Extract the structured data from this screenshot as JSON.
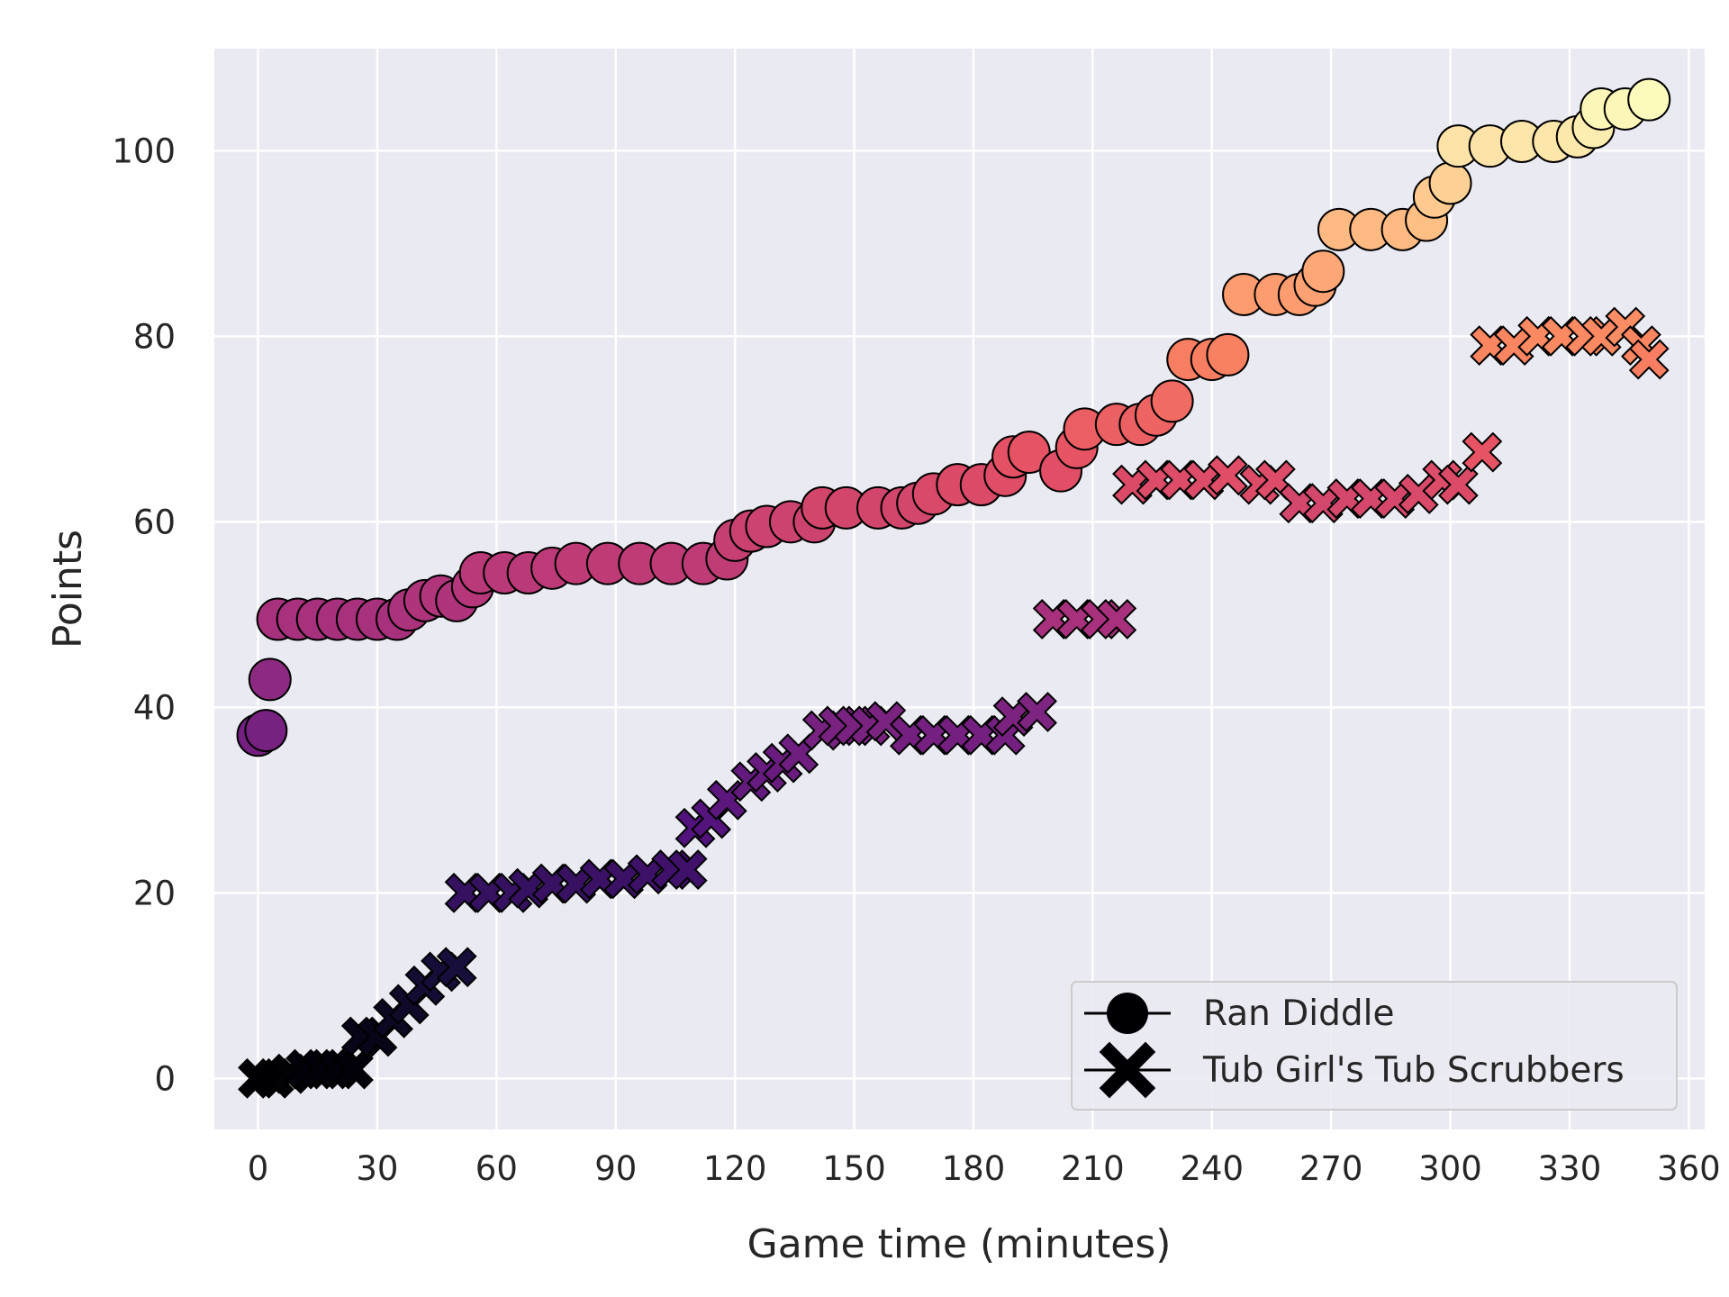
{
  "chart_data": {
    "type": "scatter",
    "xlabel": "Game time (minutes)",
    "ylabel": "Points",
    "xlim": [
      -11,
      364
    ],
    "ylim": [
      -5.5,
      111
    ],
    "xticks": [
      0,
      30,
      60,
      90,
      120,
      150,
      180,
      210,
      240,
      270,
      300,
      330,
      360
    ],
    "yticks": [
      0,
      20,
      40,
      60,
      80,
      100
    ],
    "grid": true,
    "background": "#eaeaf2",
    "grid_color": "#ffffff",
    "colormap": "magma",
    "color_range": [
      0,
      106
    ],
    "legend_position": "lower right",
    "series": [
      {
        "name": "Ran Diddle",
        "marker": "circle",
        "points": [
          [
            0,
            37
          ],
          [
            2,
            37.5
          ],
          [
            3,
            43
          ],
          [
            5,
            49.5
          ],
          [
            10,
            49.5
          ],
          [
            15,
            49.5
          ],
          [
            20,
            49.5
          ],
          [
            25,
            49.5
          ],
          [
            30,
            49.5
          ],
          [
            35,
            49.5
          ],
          [
            38,
            50.5
          ],
          [
            42,
            51.5
          ],
          [
            46,
            52
          ],
          [
            50,
            51.5
          ],
          [
            54,
            53
          ],
          [
            56,
            54.5
          ],
          [
            62,
            54.5
          ],
          [
            68,
            54.5
          ],
          [
            74,
            55
          ],
          [
            80,
            55.5
          ],
          [
            88,
            55.5
          ],
          [
            96,
            55.5
          ],
          [
            104,
            55.5
          ],
          [
            112,
            55.5
          ],
          [
            118,
            56
          ],
          [
            120,
            58
          ],
          [
            124,
            59
          ],
          [
            128,
            59.5
          ],
          [
            134,
            60
          ],
          [
            140,
            60
          ],
          [
            142,
            61.5
          ],
          [
            148,
            61.5
          ],
          [
            156,
            61.5
          ],
          [
            162,
            61.5
          ],
          [
            166,
            62
          ],
          [
            170,
            63
          ],
          [
            176,
            64
          ],
          [
            182,
            64
          ],
          [
            188,
            65
          ],
          [
            190,
            67
          ],
          [
            194,
            67.5
          ],
          [
            202,
            65.5
          ],
          [
            206,
            68
          ],
          [
            208,
            70
          ],
          [
            216,
            70.5
          ],
          [
            222,
            70.5
          ],
          [
            226,
            71.5
          ],
          [
            230,
            73
          ],
          [
            234,
            77.5
          ],
          [
            240,
            77.5
          ],
          [
            244,
            78
          ],
          [
            248,
            84.5
          ],
          [
            256,
            84.5
          ],
          [
            262,
            84.5
          ],
          [
            266,
            85.5
          ],
          [
            268,
            87
          ],
          [
            272,
            91.5
          ],
          [
            280,
            91.5
          ],
          [
            288,
            91.5
          ],
          [
            294,
            92.5
          ],
          [
            296,
            95
          ],
          [
            300,
            96.5
          ],
          [
            302,
            100.5
          ],
          [
            310,
            100.5
          ],
          [
            318,
            101
          ],
          [
            326,
            101
          ],
          [
            332,
            101.5
          ],
          [
            336,
            102.5
          ],
          [
            338,
            104.5
          ],
          [
            344,
            104.5
          ],
          [
            350,
            105.5
          ]
        ]
      },
      {
        "name": "Tub Girl's Tub Scrubbers",
        "marker": "x",
        "points": [
          [
            0,
            0
          ],
          [
            4,
            0
          ],
          [
            8,
            0.5
          ],
          [
            12,
            1
          ],
          [
            16,
            1
          ],
          [
            20,
            1
          ],
          [
            24,
            1
          ],
          [
            26,
            4.5
          ],
          [
            30,
            4.5
          ],
          [
            34,
            6.5
          ],
          [
            38,
            8
          ],
          [
            42,
            10
          ],
          [
            46,
            11.5
          ],
          [
            50,
            12
          ],
          [
            52,
            20
          ],
          [
            58,
            20
          ],
          [
            64,
            20
          ],
          [
            68,
            20.5
          ],
          [
            74,
            21
          ],
          [
            80,
            21
          ],
          [
            86,
            21.5
          ],
          [
            92,
            21.5
          ],
          [
            98,
            22
          ],
          [
            104,
            22.5
          ],
          [
            108,
            22.5
          ],
          [
            110,
            27
          ],
          [
            114,
            28
          ],
          [
            118,
            30
          ],
          [
            124,
            32
          ],
          [
            128,
            33
          ],
          [
            132,
            34
          ],
          [
            136,
            35
          ],
          [
            142,
            37.5
          ],
          [
            146,
            38
          ],
          [
            150,
            38
          ],
          [
            154,
            38
          ],
          [
            158,
            38.5
          ],
          [
            164,
            37
          ],
          [
            170,
            37
          ],
          [
            176,
            37
          ],
          [
            182,
            37
          ],
          [
            188,
            37
          ],
          [
            190,
            39
          ],
          [
            196,
            39.5
          ],
          [
            200,
            49.5
          ],
          [
            206,
            49.5
          ],
          [
            212,
            49.5
          ],
          [
            216,
            49.5
          ],
          [
            220,
            64
          ],
          [
            226,
            64.5
          ],
          [
            232,
            64.5
          ],
          [
            238,
            64.5
          ],
          [
            244,
            65
          ],
          [
            252,
            64
          ],
          [
            256,
            64.5
          ],
          [
            262,
            62
          ],
          [
            268,
            62
          ],
          [
            274,
            62.5
          ],
          [
            280,
            62.5
          ],
          [
            286,
            62.5
          ],
          [
            292,
            63
          ],
          [
            298,
            64.5
          ],
          [
            302,
            64
          ],
          [
            308,
            67.5
          ],
          [
            310,
            79
          ],
          [
            316,
            79
          ],
          [
            322,
            80
          ],
          [
            328,
            80
          ],
          [
            334,
            80
          ],
          [
            338,
            80
          ],
          [
            344,
            81
          ],
          [
            348,
            79
          ],
          [
            350,
            77.5
          ]
        ]
      }
    ]
  }
}
